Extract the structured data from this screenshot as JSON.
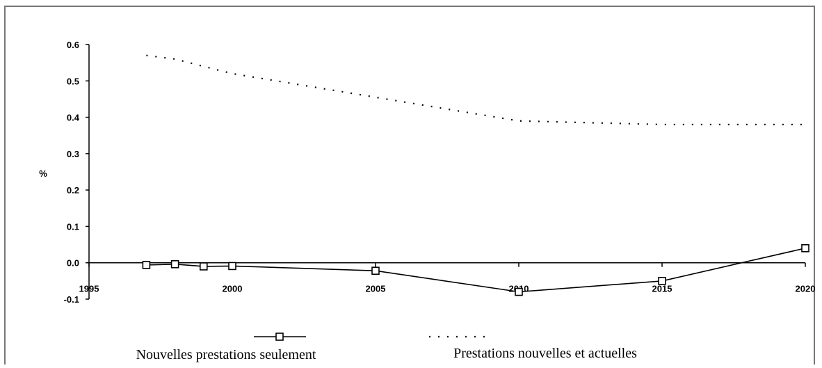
{
  "chart_data": {
    "type": "line",
    "title": "",
    "xlabel": "",
    "ylabel": "%",
    "xlim": [
      1995,
      2020
    ],
    "ylim": [
      -0.1,
      0.6
    ],
    "x_ticks": [
      "1995",
      "2000",
      "2005",
      "2010",
      "2015",
      "2020"
    ],
    "y_ticks": [
      "0.6",
      "0.5",
      "0.4",
      "0.3",
      "0.2",
      "0.1",
      "0.0",
      "-0.1"
    ],
    "grid": false,
    "legend_position": "bottom",
    "series": [
      {
        "name": "Nouvelles prestations seulement",
        "style": "solid-square-markers",
        "color": "#000000",
        "x": [
          1997,
          1998,
          1999,
          2000,
          2005,
          2010,
          2015,
          2020
        ],
        "y": [
          -0.006,
          -0.004,
          -0.01,
          -0.009,
          -0.022,
          -0.08,
          -0.05,
          0.04
        ]
      },
      {
        "name": "Prestations nouvelles et actuelles",
        "style": "dotted",
        "color": "#000000",
        "x": [
          1997,
          1998,
          1999,
          2000,
          2005,
          2010,
          2015,
          2020
        ],
        "y": [
          0.57,
          0.56,
          0.54,
          0.52,
          0.455,
          0.39,
          0.38,
          0.38
        ]
      }
    ]
  }
}
